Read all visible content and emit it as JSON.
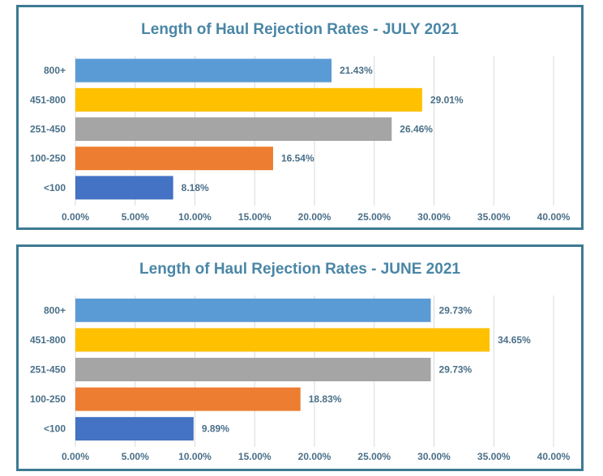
{
  "chart_data": [
    {
      "type": "bar",
      "orientation": "horizontal",
      "title": "Length of Haul Rejection Rates - JULY 2021",
      "categories": [
        "800+",
        "451-800",
        "251-450",
        "100-250",
        "<100"
      ],
      "values": [
        21.43,
        29.01,
        26.46,
        16.54,
        8.18
      ],
      "data_labels": [
        "21.43%",
        "29.01%",
        "26.46%",
        "16.54%",
        "8.18%"
      ],
      "bar_colors": [
        "#5b9bd5",
        "#ffc000",
        "#a5a5a5",
        "#ed7d31",
        "#4472c4"
      ],
      "xlim": [
        0,
        40
      ],
      "x_ticks": [
        "0.00%",
        "5.00%",
        "10.00%",
        "15.00%",
        "20.00%",
        "25.00%",
        "30.00%",
        "35.00%",
        "40.00%"
      ],
      "grid": true,
      "legend": "none"
    },
    {
      "type": "bar",
      "orientation": "horizontal",
      "title": "Length of Haul Rejection Rates - JUNE 2021",
      "categories": [
        "800+",
        "451-800",
        "251-450",
        "100-250",
        "<100"
      ],
      "values": [
        29.73,
        34.65,
        29.73,
        18.83,
        9.89
      ],
      "data_labels": [
        "29.73%",
        "34.65%",
        "29.73%",
        "18.83%",
        "9.89%"
      ],
      "bar_colors": [
        "#5b9bd5",
        "#ffc000",
        "#a5a5a5",
        "#ed7d31",
        "#4472c4"
      ],
      "xlim": [
        0,
        40
      ],
      "x_ticks": [
        "0.00%",
        "5.00%",
        "10.00%",
        "15.00%",
        "20.00%",
        "25.00%",
        "30.00%",
        "35.00%",
        "40.00%"
      ],
      "grid": true,
      "legend": "none"
    }
  ]
}
